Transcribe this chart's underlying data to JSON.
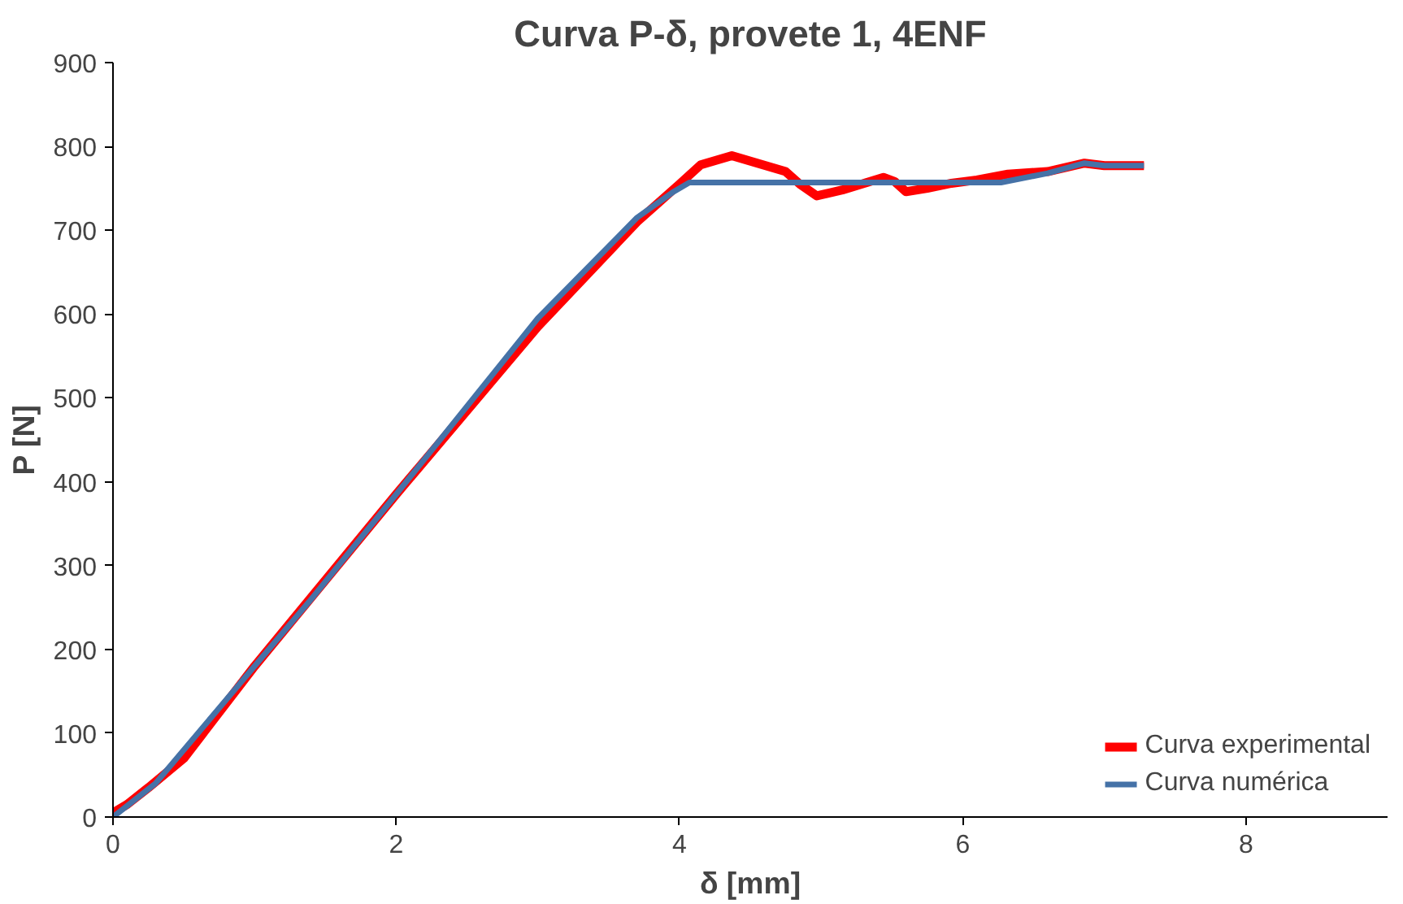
{
  "chart_data": {
    "type": "line",
    "title": "Curva P-δ, provete 1, 4ENF",
    "xlabel": "δ [mm]",
    "ylabel": "P [N]",
    "xlim": [
      0,
      9
    ],
    "xticks": [
      0,
      2,
      4,
      6,
      8
    ],
    "ylim": [
      0,
      900
    ],
    "yticks": [
      0,
      100,
      200,
      300,
      400,
      500,
      600,
      700,
      800,
      900
    ],
    "grid": false,
    "legend": "bottom right",
    "line_style": "solid",
    "marker": "none",
    "series": [
      {
        "name": "Curva experimental",
        "color": "#ff0000",
        "x": [
          0,
          0.1,
          0.25,
          0.5,
          1.0,
          2.0,
          3.0,
          3.7,
          4.0,
          4.15,
          4.37,
          4.55,
          4.75,
          4.85,
          4.97,
          5.15,
          5.44,
          5.52,
          5.6,
          5.75,
          5.92,
          6.1,
          6.32,
          6.6,
          6.86,
          7.0,
          7.28
        ],
        "values": [
          5,
          15,
          35,
          70,
          180,
          385,
          585,
          710,
          755,
          778,
          789,
          780,
          770,
          755,
          741,
          748,
          763,
          758,
          746,
          750,
          756,
          760,
          767,
          770,
          780,
          777,
          777
        ]
      },
      {
        "name": "Curva numérica",
        "color": "#4572a7",
        "x": [
          0,
          0.3,
          0.7,
          1.4,
          2.0,
          3.0,
          3.7,
          3.95,
          4.07,
          5.0,
          6.27,
          6.6,
          6.86,
          7.0,
          7.28
        ],
        "values": [
          0,
          40,
          120,
          260,
          385,
          595,
          715,
          745,
          757,
          757,
          757,
          768,
          780,
          777,
          777
        ]
      }
    ]
  }
}
